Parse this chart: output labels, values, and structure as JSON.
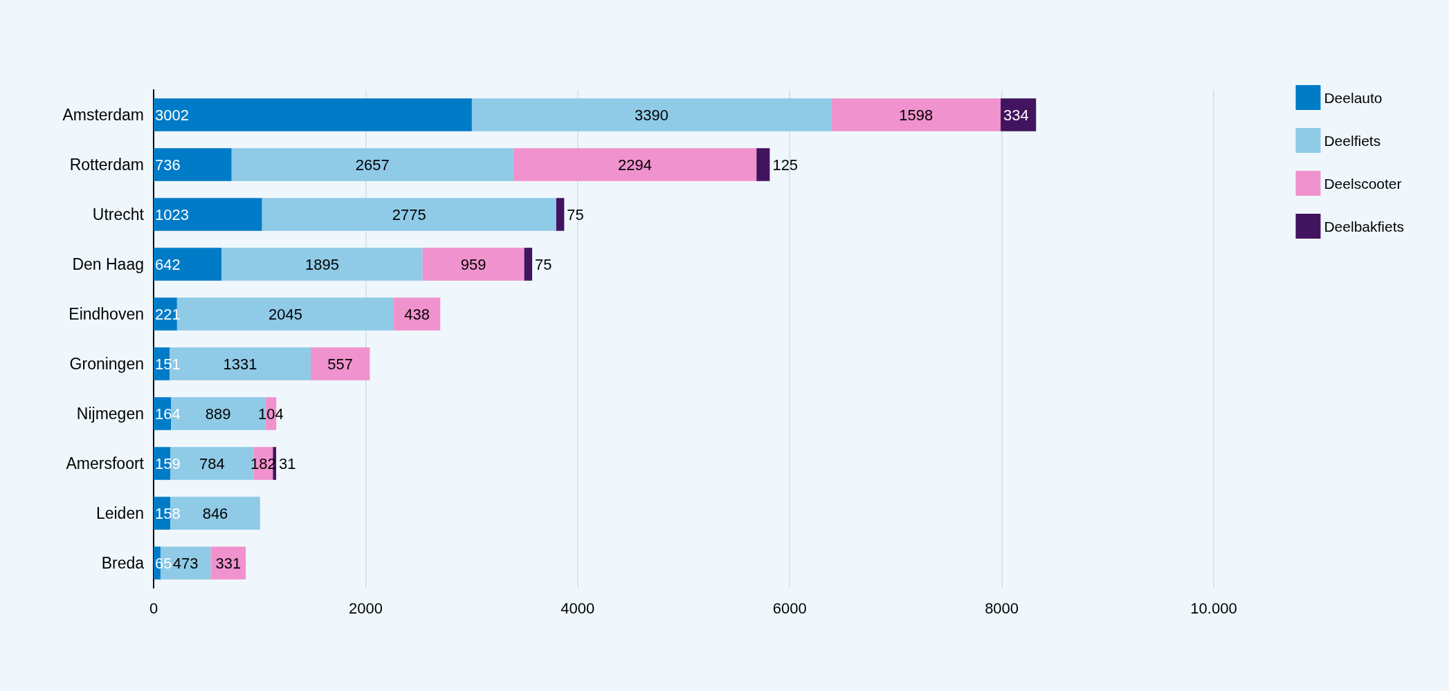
{
  "chart_data": {
    "type": "bar",
    "orientation": "horizontal",
    "stacked": true,
    "data_labels": true,
    "grid": "x",
    "legend": "top right",
    "categories": [
      "Amsterdam",
      "Rotterdam",
      "Utrecht",
      "Den Haag",
      "Eindhoven",
      "Groningen",
      "Nijmegen",
      "Amersfoort",
      "Leiden",
      "Breda"
    ],
    "series": [
      {
        "name": "Deelauto",
        "color": "#007bc7",
        "values": [
          3002,
          736,
          1023,
          642,
          221,
          151,
          164,
          159,
          158,
          65
        ]
      },
      {
        "name": "Deelfiets",
        "color": "#8fcae7",
        "values": [
          3390,
          2657,
          2775,
          1895,
          2045,
          1331,
          889,
          784,
          846,
          473
        ]
      },
      {
        "name": "Deelscooter",
        "color": "#f092cd",
        "values": [
          1598,
          2294,
          null,
          959,
          438,
          557,
          104,
          182,
          null,
          331
        ]
      },
      {
        "name": "Deelbakfiets",
        "color": "#42145f",
        "values": [
          334,
          125,
          75,
          75,
          null,
          null,
          null,
          31,
          null,
          null
        ]
      }
    ],
    "xlim": [
      0,
      10000
    ],
    "xticks": [
      0,
      2000,
      4000,
      6000,
      8000,
      {
        "value": 10000,
        "label": "10.000"
      }
    ]
  }
}
